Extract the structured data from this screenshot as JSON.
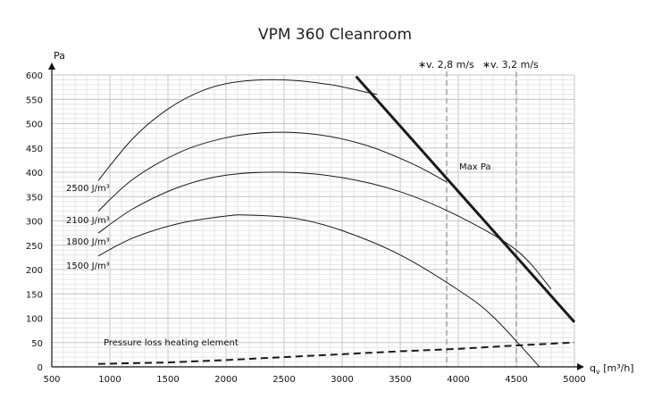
{
  "chart_data": {
    "type": "line",
    "title": "VPM 360 Cleanroom",
    "ylabel": "Pa",
    "xlabel": "qv [m³/h]",
    "xlim": [
      500,
      5000
    ],
    "ylim": [
      0,
      600
    ],
    "x_ticks": [
      500,
      1000,
      1500,
      2000,
      2500,
      3000,
      3500,
      4000,
      4500,
      5000
    ],
    "y_ticks": [
      0,
      50,
      100,
      150,
      200,
      250,
      300,
      350,
      400,
      450,
      500,
      550,
      600
    ],
    "grid": true,
    "series": [
      {
        "name": "2500 J/m³",
        "color": "#1a1a1a",
        "width": 1,
        "x": [
          900,
          1200,
          1500,
          1800,
          2100,
          2500,
          2900,
          3200,
          3300
        ],
        "y": [
          383,
          470,
          530,
          568,
          586,
          590,
          580,
          565,
          560
        ]
      },
      {
        "name": "2100 J/m³",
        "color": "#1a1a1a",
        "width": 1,
        "x": [
          900,
          1200,
          1600,
          2000,
          2400,
          2800,
          3200,
          3600,
          3900
        ],
        "y": [
          320,
          386,
          441,
          471,
          482,
          477,
          456,
          418,
          380
        ]
      },
      {
        "name": "1800 J/m³",
        "color": "#1a1a1a",
        "width": 1,
        "x": [
          900,
          1200,
          1600,
          2000,
          2500,
          3000,
          3500,
          4000,
          4500,
          4800
        ],
        "y": [
          275,
          325,
          370,
          394,
          400,
          389,
          360,
          310,
          240,
          160
        ]
      },
      {
        "name": "1500 J/m³",
        "color": "#1a1a1a",
        "width": 1,
        "x": [
          900,
          1200,
          1600,
          2000,
          2200,
          2600,
          3000,
          3500,
          4000,
          4300,
          4700
        ],
        "y": [
          228,
          265,
          295,
          310,
          312,
          305,
          280,
          230,
          158,
          103,
          0
        ]
      },
      {
        "name": "Max Pa",
        "color": "#1a1a1a",
        "width": 3,
        "x": [
          3120,
          5000
        ],
        "y": [
          597,
          92
        ]
      },
      {
        "name": "Pressure loss heating element",
        "color": "#1a1a1a",
        "width": 2,
        "dash": "8,5",
        "x": [
          900,
          1500,
          2000,
          2500,
          3000,
          3500,
          4000,
          4500,
          5000
        ],
        "y": [
          6,
          9,
          14,
          20,
          26,
          32,
          37,
          44,
          50
        ]
      }
    ],
    "velocity_lines": [
      {
        "label": "v. 2,8 m/s",
        "x": 3900
      },
      {
        "label": "v. 3,2 m/s",
        "x": 4500
      }
    ],
    "labels": {
      "series_2500": "2500 J/m³",
      "series_2100": "2100 J/m³",
      "series_1800": "1800 J/m³",
      "series_1500": "1500 J/m³",
      "max_pa": "Max Pa",
      "pressure_loss": "Pressure loss heating element",
      "v28": "v. 2,8 m/s",
      "v32": "v. 3,2 m/s",
      "star": "∗"
    }
  }
}
